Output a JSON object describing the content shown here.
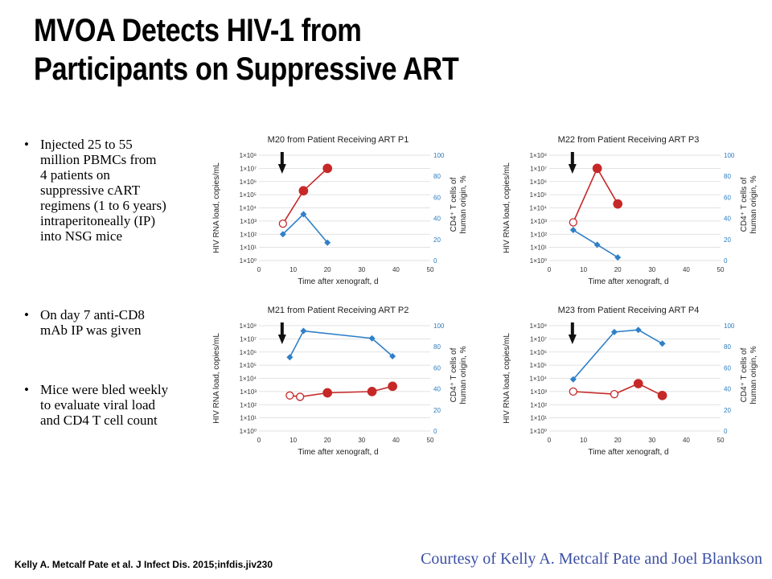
{
  "slide": {
    "title_line1": "MVOA Detects HIV-1 from",
    "title_line2": "Participants on Suppressive ART",
    "bullets": [
      [
        "Injected 25 to 55",
        "million PBMCs from",
        "4 patients on",
        "suppressive cART",
        "regimens (1 to 6 years)",
        "intraperitoneally (IP)",
        "into NSG mice"
      ],
      [
        "On day 7 anti-CD8",
        "mAb IP was given"
      ],
      [
        "Mice were bled weekly",
        "to evaluate viral load",
        "and CD4 T cell count"
      ]
    ],
    "citation": "Kelly A. Metcalf Pate et al. J Infect Dis. 2015;infdis.jiv230",
    "courtesy": "Courtesy of Kelly A. Metcalf Pate and Joel Blankson"
  },
  "colors": {
    "viral_load": "#c62828",
    "cd4": "#2f80c8",
    "gridline": "#d9d9d9",
    "arrow": "#111111",
    "courtesy": "#3b4fa5"
  },
  "chart_data": [
    {
      "type": "line",
      "title": "M20 from Patient Receiving ART P1",
      "xlabel": "Time after xenograft, d",
      "ylabel": "HIV RNA load, copies/mL",
      "ylabel2": "CD4⁺ T cells of human origin, %",
      "xlim": [
        0,
        50
      ],
      "xticks": [
        "0",
        "10",
        "20",
        "30",
        "40",
        "50"
      ],
      "ylim_log10": [
        0,
        8
      ],
      "yticks": [
        "1×10⁰",
        "1×10¹",
        "1×10²",
        "1×10³",
        "1×10⁴",
        "1×10⁵",
        "1×10⁶",
        "1×10⁷",
        "1×10⁸"
      ],
      "y2lim": [
        0,
        100
      ],
      "y2ticks": [
        "0",
        "20",
        "40",
        "60",
        "80",
        "100"
      ],
      "arrow_day": 7,
      "series": [
        {
          "axis": "left",
          "marker": "circle",
          "color": "#c62828",
          "points": [
            {
              "x": 7,
              "y": 2.8,
              "open": true
            },
            {
              "x": 13,
              "y": 5.3,
              "open": false
            },
            {
              "x": 20,
              "y": 7.0,
              "open": false
            }
          ]
        },
        {
          "axis": "right",
          "marker": "diamond",
          "color": "#2f80c8",
          "points": [
            {
              "x": 7,
              "y": 25
            },
            {
              "x": 13,
              "y": 44
            },
            {
              "x": 20,
              "y": 17
            }
          ]
        }
      ]
    },
    {
      "type": "line",
      "title": "M22 from Patient Receiving ART P3",
      "xlabel": "Time after xenograft, d",
      "ylabel": "HIV RNA load, copies/mL",
      "ylabel2": "CD4⁺ T cells of human origin, %",
      "xlim": [
        0,
        50
      ],
      "xticks": [
        "0",
        "10",
        "20",
        "30",
        "40",
        "50"
      ],
      "ylim_log10": [
        0,
        8
      ],
      "yticks": [
        "1×10⁰",
        "1×10¹",
        "1×10²",
        "1×10³",
        "1×10⁴",
        "1×10⁵",
        "1×10⁶",
        "1×10⁷",
        "1×10⁸"
      ],
      "y2lim": [
        0,
        100
      ],
      "y2ticks": [
        "0",
        "20",
        "40",
        "60",
        "80",
        "100"
      ],
      "arrow_day": 7,
      "series": [
        {
          "axis": "left",
          "marker": "circle",
          "color": "#c62828",
          "points": [
            {
              "x": 7,
              "y": 2.9,
              "open": true
            },
            {
              "x": 14,
              "y": 7.0,
              "open": false
            },
            {
              "x": 20,
              "y": 4.3,
              "open": false
            }
          ]
        },
        {
          "axis": "right",
          "marker": "diamond",
          "color": "#2f80c8",
          "points": [
            {
              "x": 7,
              "y": 29
            },
            {
              "x": 14,
              "y": 15
            },
            {
              "x": 20,
              "y": 3
            }
          ]
        }
      ]
    },
    {
      "type": "line",
      "title": "M21 from Patient Receiving ART P2",
      "xlabel": "Time after xenograft, d",
      "ylabel": "HIV RNA load, copies/mL",
      "ylabel2": "CD4⁺ T cells of human origin, %",
      "xlim": [
        0,
        50
      ],
      "xticks": [
        "0",
        "10",
        "20",
        "30",
        "40",
        "50"
      ],
      "ylim_log10": [
        0,
        8
      ],
      "yticks": [
        "1×10⁰",
        "1×10¹",
        "1×10²",
        "1×10³",
        "1×10⁴",
        "1×10⁵",
        "1×10⁶",
        "1×10⁷",
        "1×10⁸"
      ],
      "y2lim": [
        0,
        100
      ],
      "y2ticks": [
        "0",
        "20",
        "40",
        "60",
        "80",
        "100"
      ],
      "arrow_day": 7,
      "series": [
        {
          "axis": "left",
          "marker": "circle",
          "color": "#c62828",
          "points": [
            {
              "x": 9,
              "y": 2.7,
              "open": true
            },
            {
              "x": 12,
              "y": 2.6,
              "open": true
            },
            {
              "x": 20,
              "y": 2.9,
              "open": false
            },
            {
              "x": 33,
              "y": 3.0,
              "open": false
            },
            {
              "x": 39,
              "y": 3.4,
              "open": false
            }
          ]
        },
        {
          "axis": "right",
          "marker": "diamond",
          "color": "#2f80c8",
          "points": [
            {
              "x": 9,
              "y": 70
            },
            {
              "x": 13,
              "y": 95
            },
            {
              "x": 33,
              "y": 88
            },
            {
              "x": 39,
              "y": 71
            }
          ]
        }
      ]
    },
    {
      "type": "line",
      "title": "M23 from Patient Receiving ART P4",
      "xlabel": "Time after xenograft, d",
      "ylabel": "HIV RNA load, copies/mL",
      "ylabel2": "CD4⁺ T cells of human origin, %",
      "xlim": [
        0,
        50
      ],
      "xticks": [
        "0",
        "10",
        "20",
        "30",
        "40",
        "50"
      ],
      "ylim_log10": [
        0,
        8
      ],
      "yticks": [
        "1×10⁰",
        "1×10¹",
        "1×10²",
        "1×10³",
        "1×10⁴",
        "1×10⁵",
        "1×10⁶",
        "1×10⁷",
        "1×10⁸"
      ],
      "y2lim": [
        0,
        100
      ],
      "y2ticks": [
        "0",
        "20",
        "40",
        "60",
        "80",
        "100"
      ],
      "arrow_day": 7,
      "series": [
        {
          "axis": "left",
          "marker": "circle",
          "color": "#c62828",
          "points": [
            {
              "x": 7,
              "y": 3.0,
              "open": true
            },
            {
              "x": 19,
              "y": 2.8,
              "open": true
            },
            {
              "x": 26,
              "y": 3.6,
              "open": false
            },
            {
              "x": 33,
              "y": 2.7,
              "open": false
            }
          ]
        },
        {
          "axis": "right",
          "marker": "diamond",
          "color": "#2f80c8",
          "points": [
            {
              "x": 7,
              "y": 49
            },
            {
              "x": 19,
              "y": 94
            },
            {
              "x": 26,
              "y": 96
            },
            {
              "x": 33,
              "y": 83
            }
          ]
        }
      ]
    }
  ]
}
